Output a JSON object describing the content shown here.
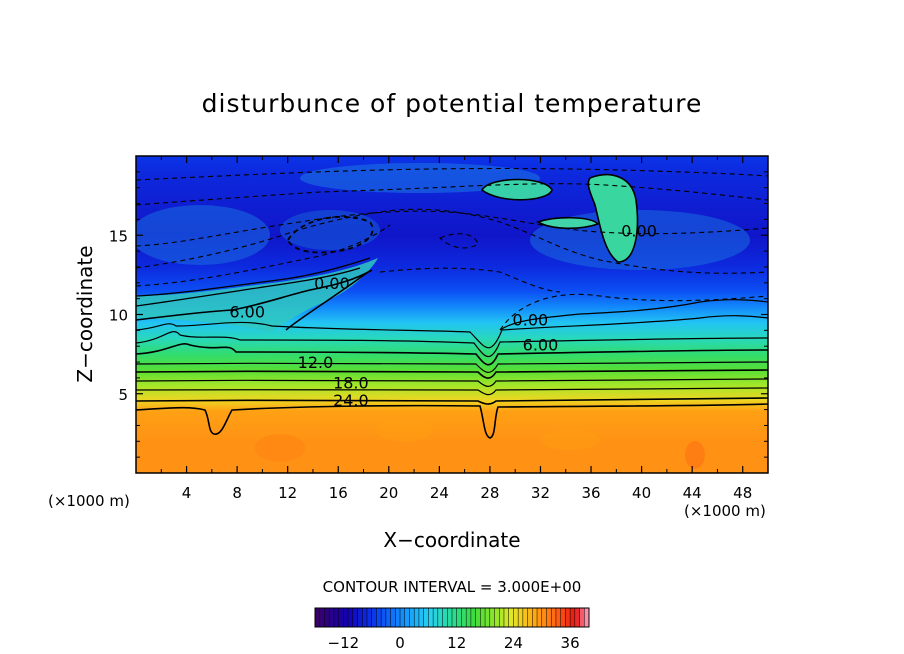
{
  "chart_data": {
    "type": "heatmap",
    "subtype": "filled-contour",
    "title": "disturbunce of potential temperature",
    "xlabel": "X−coordinate",
    "ylabel": "Z−coordinate",
    "x_unit_left": "(×1000 m)",
    "x_unit_right": "(×1000 m)",
    "xlim": [
      0,
      50
    ],
    "ylim": [
      0,
      20
    ],
    "x_ticks": [
      4,
      8,
      12,
      16,
      20,
      24,
      28,
      32,
      36,
      40,
      44,
      48
    ],
    "y_ticks": [
      5,
      10,
      15
    ],
    "contour_interval_text": "CONTOUR INTERVAL = 3.000E+00",
    "contour_interval": 3,
    "contour_labels": [
      {
        "text": "0.00",
        "x": 15.5,
        "z": 12.0
      },
      {
        "text": "6.00",
        "x": 8.8,
        "z": 10.2
      },
      {
        "text": "12.0",
        "x": 14.2,
        "z": 7.0
      },
      {
        "text": "18.0",
        "x": 17.0,
        "z": 5.7
      },
      {
        "text": "24.0",
        "x": 17.0,
        "z": 4.6
      },
      {
        "text": "0.00",
        "x": 31.2,
        "z": 9.7
      },
      {
        "text": "6.00",
        "x": 32.0,
        "z": 8.1
      },
      {
        "text": "0.00",
        "x": 39.8,
        "z": 15.3
      }
    ],
    "colorbar": {
      "range": [
        -18,
        40
      ],
      "tick_values": [
        -12,
        0,
        12,
        24,
        36
      ],
      "tick_labels": [
        "−12",
        "0",
        "12",
        "24",
        "36"
      ]
    },
    "field_profile": {
      "z": [
        0,
        2,
        3.9,
        4.6,
        5.5,
        6.5,
        7.5,
        8.5,
        9.5,
        10.5,
        11.5,
        13,
        15,
        17,
        19,
        20
      ],
      "theta": [
        30,
        30,
        29,
        25,
        21,
        17,
        13,
        9,
        5,
        0,
        -4,
        -7,
        -9,
        -8,
        -7,
        -6
      ]
    },
    "grid": false,
    "legend": "colorbar-bottom"
  }
}
